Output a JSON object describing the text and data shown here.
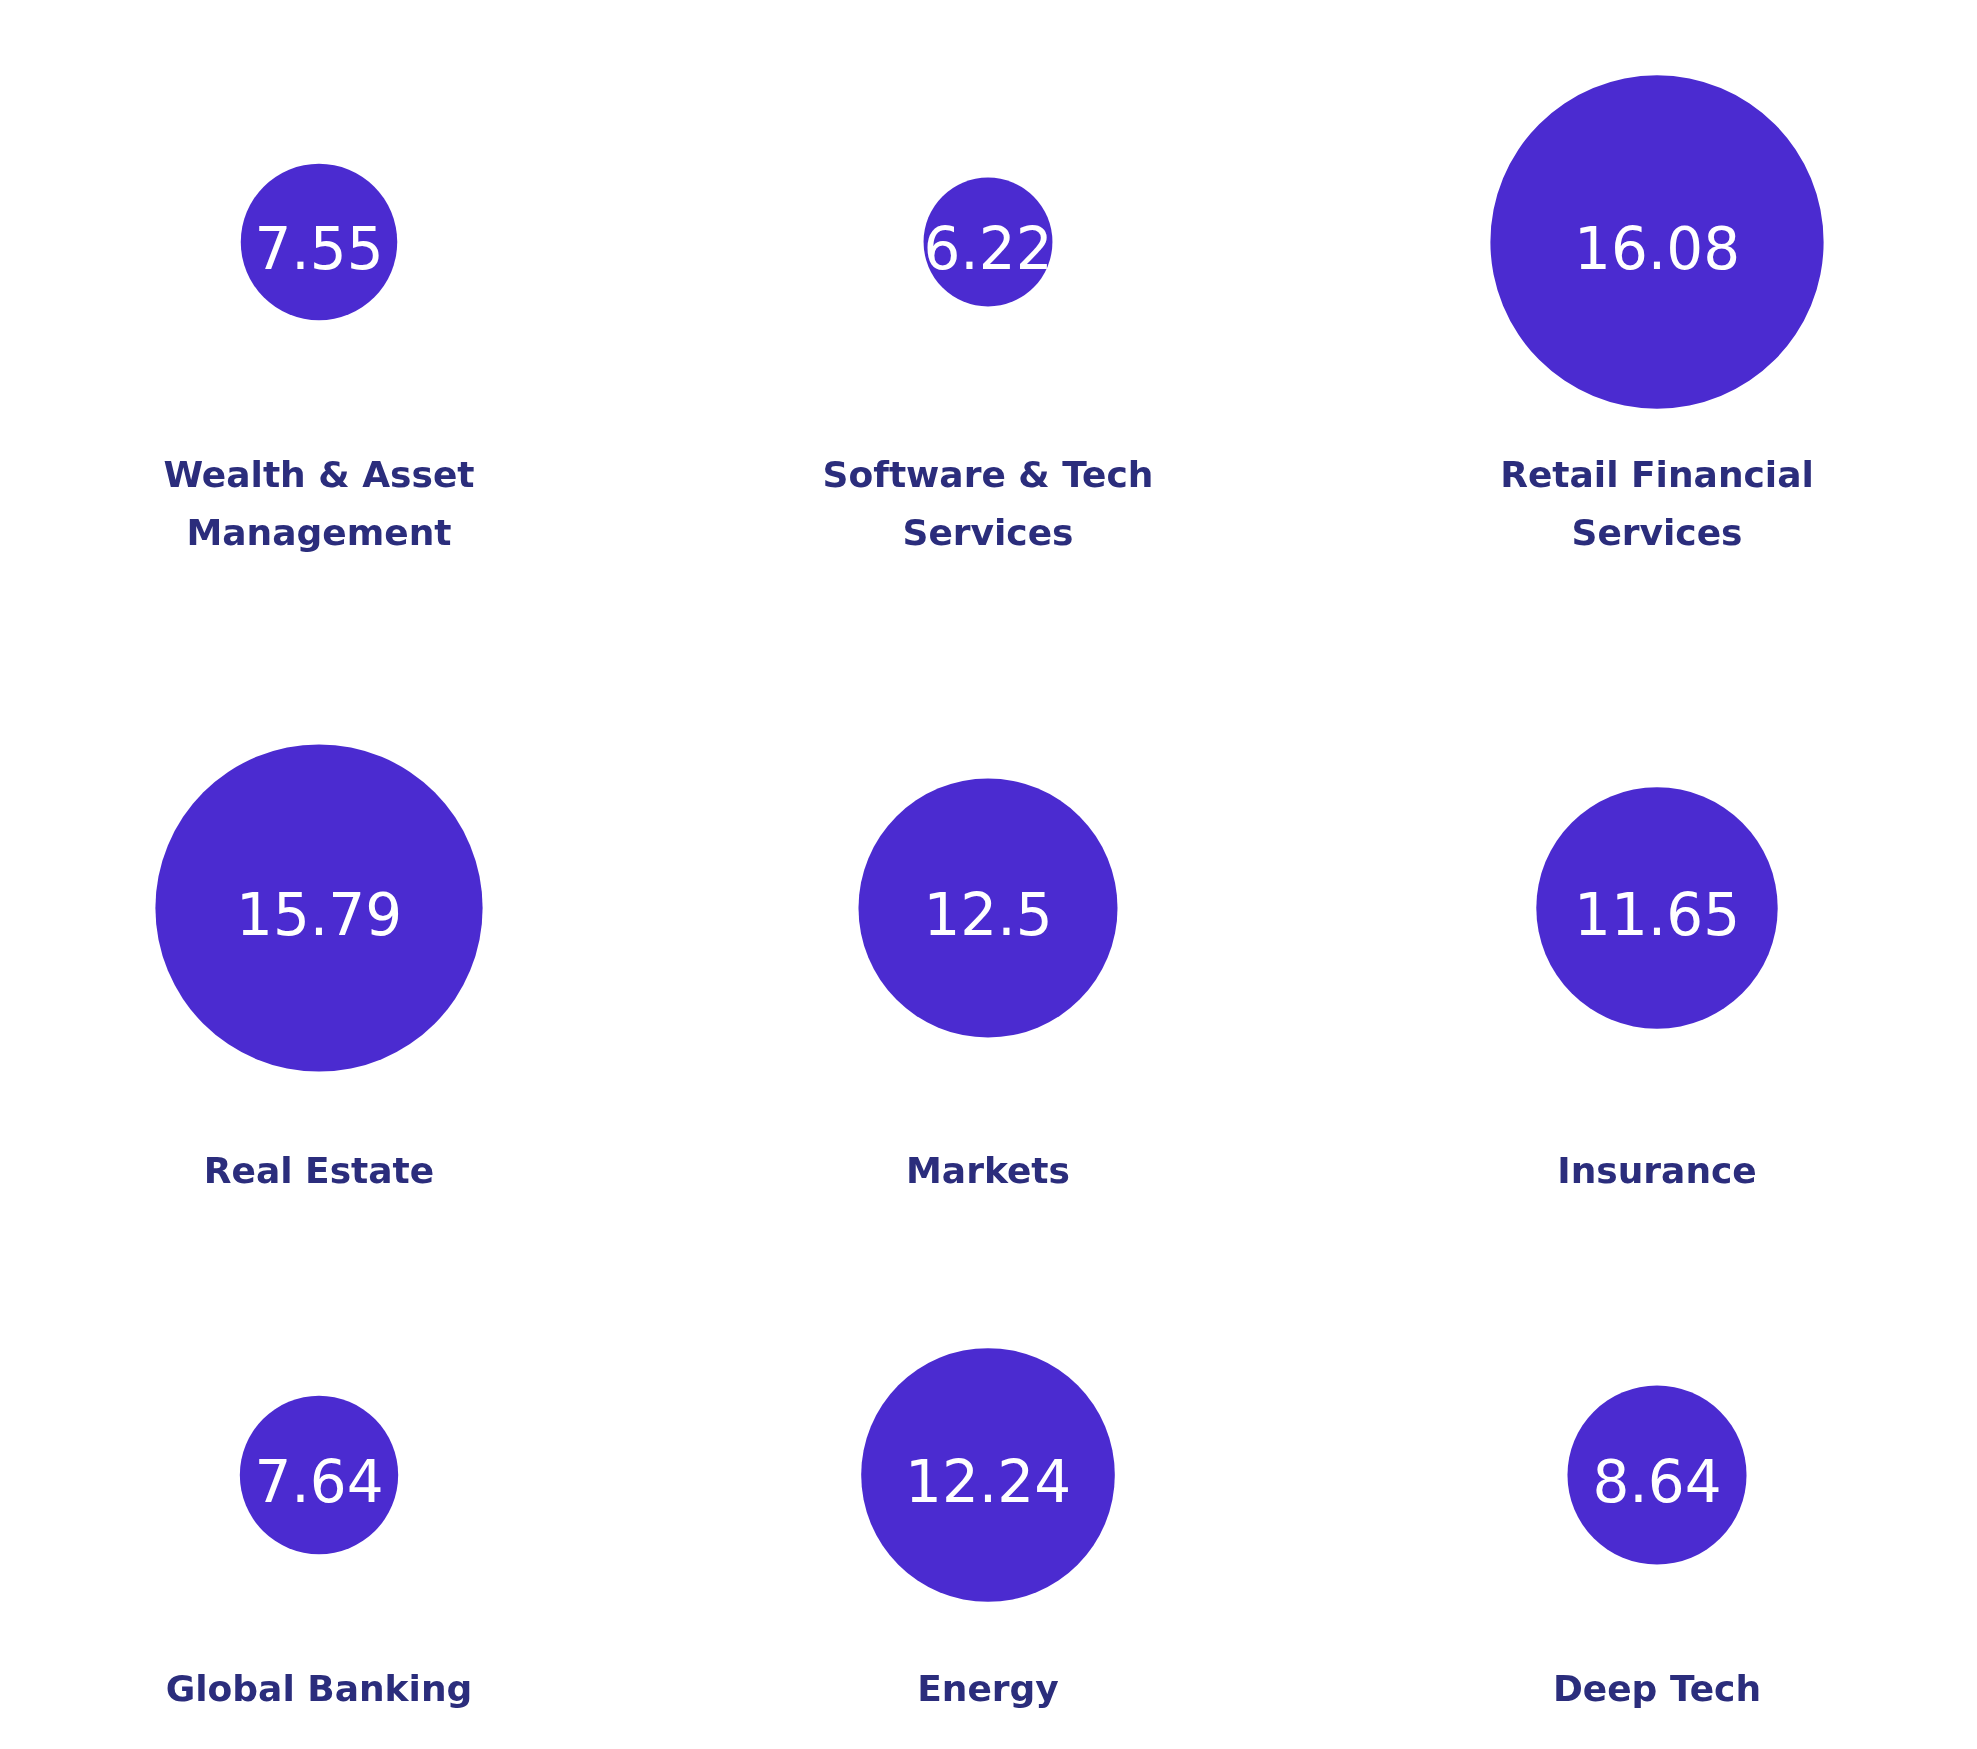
{
  "chart_data": {
    "type": "other",
    "categories": [
      "Wealth & Asset Management",
      "Software & Tech Services",
      "Retail Financial Services",
      "Real Estate",
      "Markets",
      "Insurance",
      "Global Banking",
      "Energy",
      "Deep Tech"
    ],
    "values": [
      7.55,
      6.22,
      16.08,
      15.79,
      12.5,
      11.65,
      7.64,
      12.24,
      8.64
    ],
    "color": "#4b2bd0",
    "data_labels": true
  }
}
